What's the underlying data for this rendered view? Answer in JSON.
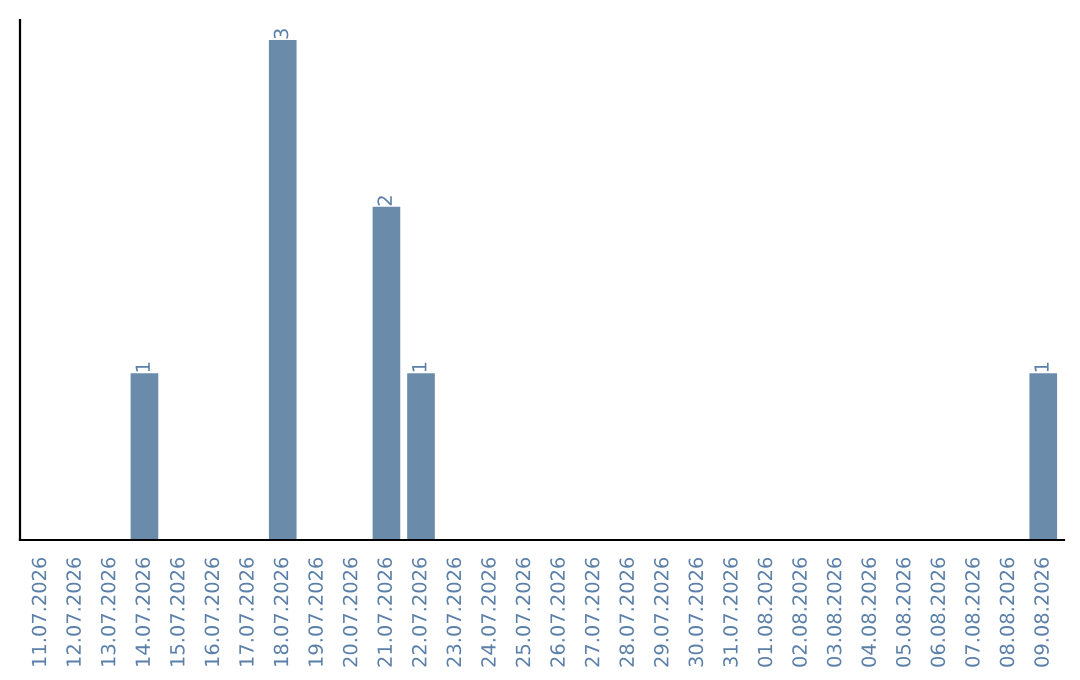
{
  "chart_data": {
    "type": "bar",
    "categories": [
      "11.07.2026",
      "12.07.2026",
      "13.07.2026",
      "14.07.2026",
      "15.07.2026",
      "16.07.2026",
      "17.07.2026",
      "18.07.2026",
      "19.07.2026",
      "20.07.2026",
      "21.07.2026",
      "22.07.2026",
      "23.07.2026",
      "24.07.2026",
      "25.07.2026",
      "26.07.2026",
      "27.07.2026",
      "28.07.2026",
      "29.07.2026",
      "30.07.2026",
      "31.07.2026",
      "01.08.2026",
      "02.08.2026",
      "03.08.2026",
      "04.08.2026",
      "05.08.2026",
      "06.08.2026",
      "07.08.2026",
      "08.08.2026",
      "09.08.2026"
    ],
    "values": [
      0,
      0,
      0,
      1,
      0,
      0,
      0,
      3,
      0,
      0,
      2,
      1,
      0,
      0,
      0,
      0,
      0,
      0,
      0,
      0,
      0,
      0,
      0,
      0,
      0,
      0,
      0,
      0,
      0,
      1
    ],
    "value_labels": [
      null,
      null,
      null,
      "1",
      null,
      null,
      null,
      "3",
      null,
      null,
      "2",
      "1",
      null,
      null,
      null,
      null,
      null,
      null,
      null,
      null,
      null,
      null,
      null,
      null,
      null,
      null,
      null,
      null,
      null,
      "1"
    ],
    "color": "#6a8caa",
    "tick_labels": "x",
    "grid": false
  }
}
